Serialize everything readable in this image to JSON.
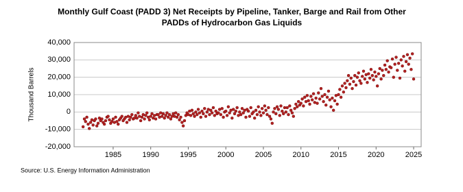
{
  "chart_data": {
    "type": "scatter",
    "title": "Monthly Gulf Coast (PADD 3) Net Receipts by Pipeline, Tanker, Barge and Rail from Other",
    "subtitle": "PADDs of Hydrocarbon Gas Liquids",
    "y_label": "Thousand Barrels",
    "source": "Source: U.S. Energy Information Administration",
    "xlim": [
      1979.8,
      2026
    ],
    "xticks": [
      1985,
      1990,
      1995,
      2000,
      2005,
      2010,
      2015,
      2020,
      2025
    ],
    "ylim": [
      -20000,
      40000
    ],
    "yticks": [
      {
        "value": -20000,
        "label": "-20,000"
      },
      {
        "value": -10000,
        "label": "-10,000"
      },
      0,
      {
        "value": 10000,
        "label": "10,000"
      },
      {
        "value": 20000,
        "label": "20,000"
      },
      {
        "value": 30000,
        "label": "30,000"
      },
      {
        "value": 40000,
        "label": "40,000"
      }
    ],
    "grid": true,
    "series": [
      {
        "color": "#b22222",
        "x": [
          1981,
          1981.17,
          1981.33,
          1981.5,
          1981.67,
          1981.83,
          1982,
          1982.17,
          1982.33,
          1982.5,
          1982.67,
          1982.83,
          1983,
          1983.17,
          1983.33,
          1983.5,
          1983.67,
          1983.83,
          1984,
          1984.17,
          1984.33,
          1984.5,
          1984.67,
          1984.83,
          1985,
          1985.17,
          1985.33,
          1985.5,
          1985.67,
          1985.83,
          1986,
          1986.17,
          1986.33,
          1986.5,
          1986.67,
          1986.83,
          1987,
          1987.17,
          1987.33,
          1987.5,
          1987.67,
          1987.83,
          1988,
          1988.17,
          1988.33,
          1988.5,
          1988.67,
          1988.83,
          1989,
          1989.17,
          1989.33,
          1989.5,
          1989.67,
          1989.83,
          1990,
          1990.17,
          1990.33,
          1990.5,
          1990.67,
          1990.83,
          1991,
          1991.17,
          1991.33,
          1991.5,
          1991.67,
          1991.83,
          1992,
          1992.17,
          1992.33,
          1992.5,
          1992.67,
          1992.83,
          1993,
          1993.17,
          1993.33,
          1993.5,
          1993.67,
          1993.83,
          1994,
          1994.17,
          1994.33,
          1994.5,
          1994.67,
          1994.83,
          1995,
          1995.17,
          1995.33,
          1995.5,
          1995.67,
          1995.83,
          1996,
          1996.17,
          1996.33,
          1996.5,
          1996.67,
          1996.83,
          1997,
          1997.17,
          1997.33,
          1997.5,
          1997.67,
          1997.83,
          1998,
          1998.17,
          1998.33,
          1998.5,
          1998.67,
          1998.83,
          1999,
          1999.17,
          1999.33,
          1999.5,
          1999.67,
          1999.83,
          2000,
          2000.17,
          2000.33,
          2000.5,
          2000.67,
          2000.83,
          2001,
          2001.17,
          2001.33,
          2001.5,
          2001.67,
          2001.83,
          2002,
          2002.17,
          2002.33,
          2002.5,
          2002.67,
          2002.83,
          2003,
          2003.17,
          2003.33,
          2003.5,
          2003.67,
          2003.83,
          2004,
          2004.17,
          2004.33,
          2004.5,
          2004.67,
          2004.83,
          2005,
          2005.17,
          2005.33,
          2005.5,
          2005.67,
          2005.83,
          2006,
          2006.17,
          2006.33,
          2006.5,
          2006.67,
          2006.83,
          2007,
          2007.17,
          2007.33,
          2007.5,
          2007.67,
          2007.83,
          2008,
          2008.17,
          2008.33,
          2008.5,
          2008.67,
          2008.83,
          2009,
          2009.17,
          2009.33,
          2009.5,
          2009.67,
          2009.83,
          2010,
          2010.17,
          2010.33,
          2010.5,
          2010.67,
          2010.83,
          2011,
          2011.17,
          2011.33,
          2011.5,
          2011.67,
          2011.83,
          2012,
          2012.17,
          2012.33,
          2012.5,
          2012.67,
          2012.83,
          2013,
          2013.17,
          2013.33,
          2013.5,
          2013.67,
          2013.83,
          2014,
          2014.17,
          2014.33,
          2014.5,
          2014.67,
          2014.83,
          2015,
          2015.17,
          2015.33,
          2015.5,
          2015.67,
          2015.83,
          2016,
          2016.17,
          2016.33,
          2016.5,
          2016.67,
          2016.83,
          2017,
          2017.17,
          2017.33,
          2017.5,
          2017.67,
          2017.83,
          2018,
          2018.17,
          2018.33,
          2018.5,
          2018.67,
          2018.83,
          2019,
          2019.17,
          2019.33,
          2019.5,
          2019.67,
          2019.83,
          2020,
          2020.17,
          2020.33,
          2020.5,
          2020.67,
          2020.83,
          2021,
          2021.17,
          2021.33,
          2021.5,
          2021.67,
          2021.83,
          2022,
          2022.17,
          2022.33,
          2022.5,
          2022.67,
          2022.83,
          2023,
          2023.17,
          2023.33,
          2023.5,
          2023.67,
          2023.83,
          2024,
          2024.17,
          2024.33,
          2024.5,
          2024.67,
          2024.83,
          2025
        ],
        "values": [
          -8500,
          -4000,
          -5500,
          -3000,
          -7000,
          -9500,
          -6000,
          -4500,
          -7500,
          -5000,
          -4000,
          -8000,
          -6500,
          -3500,
          -5000,
          -4000,
          -6000,
          -7000,
          -5000,
          -3000,
          -2500,
          -4500,
          -6500,
          -5500,
          -4000,
          -6000,
          -3000,
          -5500,
          -7000,
          -4500,
          -3500,
          -2500,
          -5000,
          -4000,
          -3000,
          -6000,
          -2500,
          -4500,
          -3000,
          -1500,
          -4000,
          -3500,
          -2000,
          -3500,
          -500,
          -2500,
          -5000,
          -3000,
          -1500,
          -4000,
          -2000,
          -500,
          -3000,
          -4500,
          -2500,
          -1000,
          -3500,
          -2000,
          -4000,
          -1500,
          -1500,
          -3000,
          -500,
          -2500,
          -1000,
          -3500,
          -2000,
          -500,
          -3000,
          -1500,
          -4000,
          -2500,
          -1000,
          -2500,
          -500,
          -3000,
          -1500,
          -4500,
          -3000,
          -6000,
          -8000,
          -5000,
          -2000,
          -500,
          -1500,
          500,
          -2000,
          1000,
          -1000,
          -2500,
          0,
          -1500,
          1500,
          -500,
          -3000,
          500,
          -1000,
          2000,
          -2500,
          0,
          1500,
          -1500,
          1000,
          -500,
          2500,
          -2000,
          500,
          -1000,
          -500,
          1500,
          -1500,
          2000,
          -3000,
          0,
          500,
          -2000,
          3000,
          -500,
          1000,
          -3500,
          1500,
          -1000,
          500,
          2500,
          -2000,
          0,
          -1500,
          2000,
          -500,
          1000,
          -3000,
          1500,
          500,
          -2500,
          2500,
          -1000,
          0,
          -3500,
          1000,
          -1500,
          3000,
          0,
          -2000,
          2000,
          -500,
          3500,
          1000,
          -1500,
          2500,
          -2500,
          -4000,
          -6500,
          0,
          2000,
          -1000,
          3000,
          1500,
          -2000,
          3500,
          500,
          -1000,
          2500,
          0,
          2500,
          -1500,
          3500,
          1000,
          -500,
          -2500,
          2000,
          4500,
          3000,
          6000,
          4000,
          5000,
          7500,
          3500,
          8500,
          6000,
          9500,
          6500,
          4500,
          9000,
          7000,
          10500,
          5500,
          8000,
          5000,
          11000,
          7500,
          13500,
          9000,
          6000,
          10000,
          4000,
          8500,
          12000,
          7000,
          3000,
          8000,
          1000,
          6500,
          9500,
          4500,
          10000,
          13000,
          8500,
          15000,
          11500,
          16500,
          14000,
          18000,
          21000,
          16000,
          19500,
          13500,
          17500,
          21000,
          15500,
          20000,
          22500,
          18000,
          16500,
          20500,
          23500,
          19000,
          21500,
          17000,
          22000,
          19500,
          24500,
          21000,
          18500,
          23000,
          20500,
          15000,
          22000,
          25000,
          19000,
          24000,
          21000,
          27000,
          24500,
          29500,
          23000,
          26000,
          25500,
          30500,
          20000,
          27500,
          31500,
          24000,
          28000,
          19500,
          30000,
          26500,
          32000,
          23500,
          29000,
          33000,
          27500,
          31000,
          24500,
          33500,
          19000
        ]
      }
    ]
  }
}
